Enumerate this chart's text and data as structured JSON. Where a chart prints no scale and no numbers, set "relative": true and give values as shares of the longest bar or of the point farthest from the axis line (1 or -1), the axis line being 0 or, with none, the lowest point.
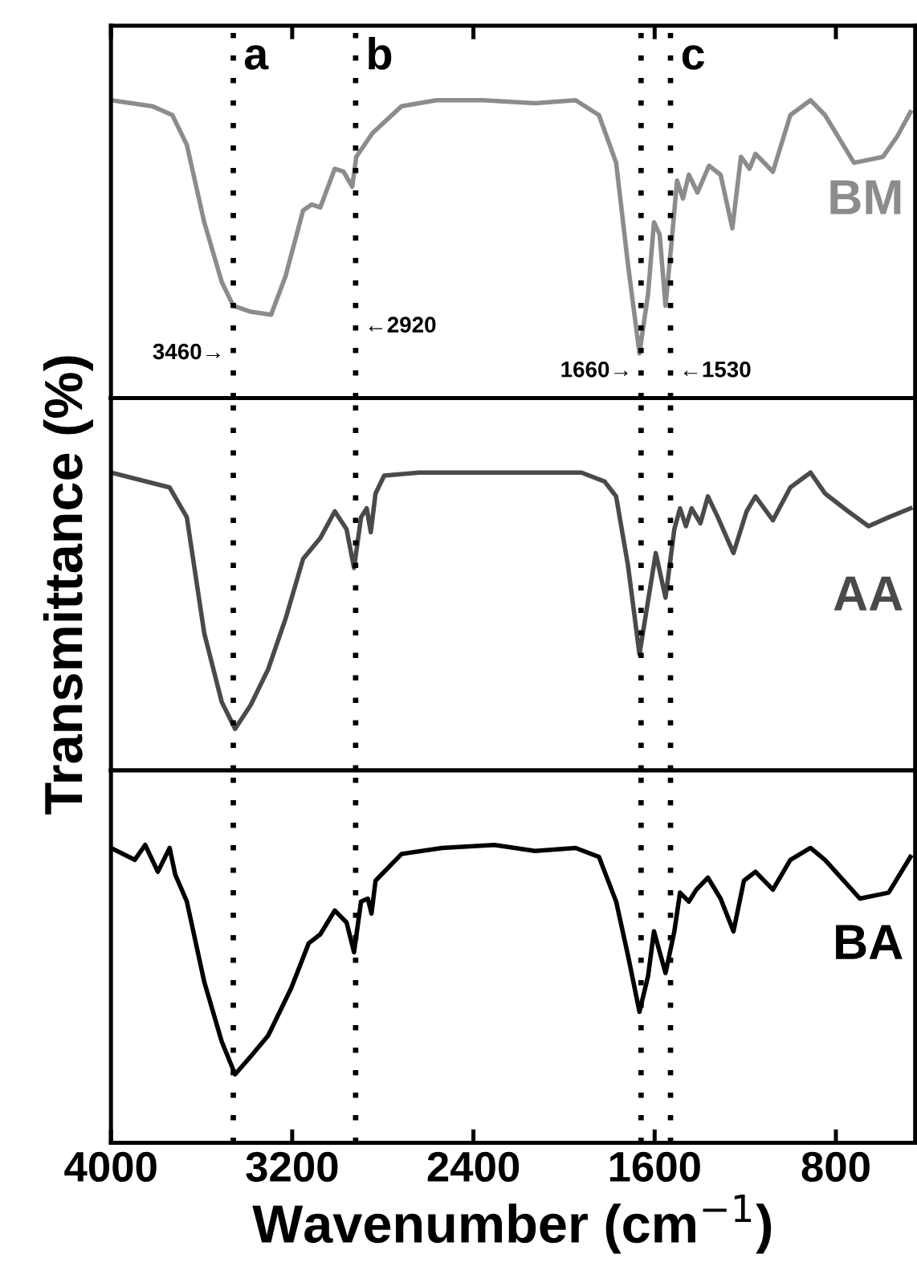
{
  "chart_data": [
    {
      "type": "line",
      "relative": true,
      "xlim": [
        4000,
        450
      ],
      "xticks": [
        4000,
        3200,
        2400,
        1600,
        800
      ],
      "tick_labels": false,
      "grid": false,
      "legend": false,
      "marker": "none",
      "line_style": "solid",
      "ref_lines": [
        {
          "axis": "x",
          "value": 3460,
          "label": "a",
          "color": "#000000",
          "line_style": "dotted"
        },
        {
          "axis": "x",
          "value": 2920,
          "label": "b",
          "color": "#000000",
          "line_style": "dotted"
        },
        {
          "axis": "x",
          "value": 1660,
          "label": null,
          "color": "#000000",
          "line_style": "dotted"
        },
        {
          "axis": "x",
          "value": 1530,
          "label": "c",
          "color": "#000000",
          "line_style": "dotted"
        }
      ],
      "annotations": [
        {
          "text": "3460→",
          "x": 3460,
          "y": 0.15
        },
        {
          "text": "←2920",
          "x": 2920,
          "y": 0.24
        },
        {
          "text": "1660→",
          "x": 1660,
          "y": 0.09
        },
        {
          "text": "←1530",
          "x": 1530,
          "y": 0.09
        }
      ],
      "series": [
        {
          "name": "BM",
          "color": "#8c8c8c",
          "x": [
            4000,
            3818,
            3729,
            3665,
            3588,
            3511,
            3460,
            3383,
            3293,
            3229,
            3152,
            3114,
            3076,
            3012,
            2973,
            2935,
            2917,
            2845,
            2717,
            2563,
            2358,
            2128,
            1949,
            1846,
            1770,
            1718,
            1667,
            1629,
            1603,
            1578,
            1552,
            1527,
            1501,
            1475,
            1449,
            1411,
            1360,
            1309,
            1257,
            1219,
            1181,
            1155,
            1078,
            1001,
            912,
            848,
            720,
            592,
            528,
            471
          ],
          "values": [
            1.0,
            0.98,
            0.95,
            0.85,
            0.59,
            0.39,
            0.31,
            0.29,
            0.28,
            0.41,
            0.63,
            0.65,
            0.64,
            0.77,
            0.76,
            0.71,
            0.81,
            0.89,
            0.98,
            1.0,
            1.0,
            0.99,
            1.0,
            0.95,
            0.79,
            0.45,
            0.15,
            0.35,
            0.59,
            0.55,
            0.31,
            0.51,
            0.73,
            0.67,
            0.75,
            0.69,
            0.78,
            0.75,
            0.57,
            0.81,
            0.77,
            0.82,
            0.76,
            0.95,
            1.0,
            0.95,
            0.79,
            0.81,
            0.88,
            0.96
          ]
        }
      ]
    },
    {
      "type": "line",
      "relative": true,
      "xlim": [
        4000,
        450
      ],
      "xticks": [
        4000,
        3200,
        2400,
        1600,
        800
      ],
      "tick_labels": false,
      "grid": false,
      "legend": false,
      "marker": "none",
      "line_style": "solid",
      "ylabel": "Transmittance (%)",
      "ref_lines": [
        {
          "axis": "x",
          "value": 3460,
          "color": "#000000",
          "line_style": "dotted"
        },
        {
          "axis": "x",
          "value": 2920,
          "color": "#000000",
          "line_style": "dotted"
        },
        {
          "axis": "x",
          "value": 1660,
          "color": "#000000",
          "line_style": "dotted"
        },
        {
          "axis": "x",
          "value": 1530,
          "color": "#000000",
          "line_style": "dotted"
        }
      ],
      "series": [
        {
          "name": "AA",
          "color": "#4a4a4a",
          "x": [
            4000,
            3741,
            3665,
            3588,
            3511,
            3452,
            3383,
            3306,
            3229,
            3152,
            3076,
            3012,
            2960,
            2927,
            2896,
            2871,
            2853,
            2832,
            2794,
            2640,
            2307,
            1923,
            1821,
            1770,
            1718,
            1667,
            1629,
            1595,
            1552,
            1513,
            1488,
            1462,
            1437,
            1398,
            1365,
            1321,
            1252,
            1194,
            1155,
            1078,
            1001,
            912,
            848,
            746,
            656,
            567,
            471
          ],
          "values": [
            1.0,
            0.95,
            0.85,
            0.46,
            0.23,
            0.14,
            0.22,
            0.34,
            0.51,
            0.71,
            0.78,
            0.87,
            0.81,
            0.68,
            0.85,
            0.88,
            0.8,
            0.93,
            0.99,
            1.0,
            1.0,
            1.0,
            0.97,
            0.92,
            0.69,
            0.39,
            0.57,
            0.73,
            0.58,
            0.81,
            0.88,
            0.82,
            0.88,
            0.83,
            0.92,
            0.85,
            0.73,
            0.87,
            0.92,
            0.84,
            0.95,
            1.0,
            0.93,
            0.87,
            0.82,
            0.85,
            0.88
          ]
        }
      ]
    },
    {
      "type": "line",
      "relative": true,
      "xlim": [
        4000,
        450
      ],
      "xticks": [
        4000,
        3200,
        2400,
        1600,
        800
      ],
      "tick_labels": "x",
      "grid": false,
      "legend": false,
      "marker": "none",
      "line_style": "solid",
      "xlabel": "Wavenumber (cm$^{−1}$)",
      "ref_lines": [
        {
          "axis": "x",
          "value": 3460,
          "color": "#000000",
          "line_style": "dotted"
        },
        {
          "axis": "x",
          "value": 2920,
          "color": "#000000",
          "line_style": "dotted"
        },
        {
          "axis": "x",
          "value": 1660,
          "color": "#000000",
          "line_style": "dotted"
        },
        {
          "axis": "x",
          "value": 1530,
          "color": "#000000",
          "line_style": "dotted"
        }
      ],
      "series": [
        {
          "name": "BA",
          "color": "#000000",
          "x": [
            4000,
            3895,
            3849,
            3793,
            3741,
            3716,
            3665,
            3588,
            3511,
            3452,
            3383,
            3306,
            3204,
            3127,
            3076,
            3012,
            2960,
            2927,
            2896,
            2866,
            2850,
            2832,
            2717,
            2538,
            2307,
            2128,
            1949,
            1846,
            1770,
            1718,
            1667,
            1629,
            1603,
            1552,
            1513,
            1488,
            1449,
            1416,
            1365,
            1309,
            1252,
            1206,
            1155,
            1078,
            1001,
            912,
            848,
            694,
            567,
            471
          ],
          "values": [
            0.99,
            0.95,
            1.0,
            0.91,
            0.99,
            0.9,
            0.81,
            0.54,
            0.34,
            0.23,
            0.29,
            0.36,
            0.52,
            0.67,
            0.7,
            0.78,
            0.74,
            0.64,
            0.81,
            0.82,
            0.77,
            0.88,
            0.97,
            0.99,
            1.0,
            0.98,
            0.99,
            0.96,
            0.81,
            0.63,
            0.44,
            0.56,
            0.71,
            0.57,
            0.71,
            0.84,
            0.81,
            0.85,
            0.89,
            0.82,
            0.71,
            0.88,
            0.91,
            0.85,
            0.95,
            0.99,
            0.95,
            0.82,
            0.84,
            0.96
          ]
        }
      ]
    }
  ]
}
